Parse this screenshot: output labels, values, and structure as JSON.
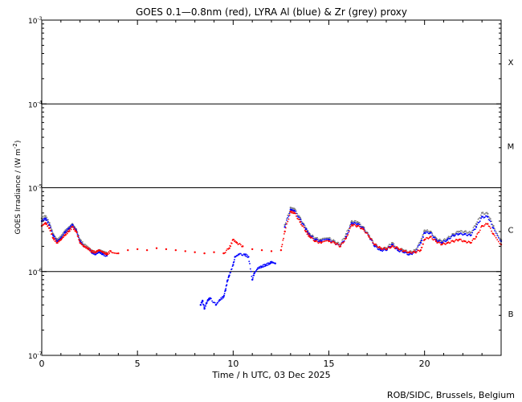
{
  "chart_data": {
    "type": "scatter",
    "title": "GOES 0.1—0.8nm (red), LYRA Al (blue) & Zr (grey) proxy",
    "xlabel": "Time / h UTC, 03 Dec 2025",
    "ylabel": "GOES Irradiance / (W m",
    "ylabel_sup": "-2",
    "ylabel_close": ")",
    "credit": "ROB/SIDC, Brussels, Belgium",
    "xlim": [
      0,
      24
    ],
    "ylim": [
      1e-07,
      0.001
    ],
    "yscale": "log",
    "x_ticks": [
      {
        "v": 0,
        "label": "0"
      },
      {
        "v": 5,
        "label": "5"
      },
      {
        "v": 10,
        "label": "10"
      },
      {
        "v": 15,
        "label": "15"
      },
      {
        "v": 20,
        "label": "20"
      }
    ],
    "y_ticks": [
      {
        "exp": -7,
        "base": "10",
        "sup": "-7"
      },
      {
        "exp": -6,
        "base": "10",
        "sup": "-6"
      },
      {
        "exp": -5,
        "base": "10",
        "sup": "-5"
      },
      {
        "exp": -4,
        "base": "10",
        "sup": "-4"
      },
      {
        "exp": -3,
        "base": "10",
        "sup": "-3"
      }
    ],
    "flare_classes": [
      {
        "label": "B",
        "center_exp": -6.5
      },
      {
        "label": "C",
        "center_exp": -5.5
      },
      {
        "label": "M",
        "center_exp": -4.5
      },
      {
        "label": "X",
        "center_exp": -3.5
      }
    ],
    "class_lines_exp": [
      -6,
      -5,
      -4
    ],
    "series": [
      {
        "name": "GOES 0.1—0.8nm",
        "color": "#ff0000",
        "x": [
          0.0,
          0.2,
          0.4,
          0.6,
          0.8,
          1.0,
          1.2,
          1.4,
          1.6,
          1.8,
          2.0,
          2.2,
          2.4,
          2.6,
          2.8,
          3.0,
          3.2,
          3.4,
          3.6,
          4.0,
          4.5,
          5.0,
          5.5,
          6.0,
          6.5,
          7.0,
          7.5,
          8.0,
          8.5,
          9.0,
          9.5,
          9.8,
          10.0,
          10.2,
          10.5,
          11.0,
          11.5,
          12.0,
          12.5,
          12.7,
          13.0,
          13.2,
          13.5,
          13.8,
          14.0,
          14.3,
          14.6,
          15.0,
          15.3,
          15.6,
          15.9,
          16.2,
          16.5,
          16.8,
          17.1,
          17.4,
          17.7,
          18.0,
          18.3,
          18.6,
          18.9,
          19.2,
          19.5,
          19.8,
          20.0,
          20.3,
          20.6,
          20.9,
          21.2,
          21.5,
          21.8,
          22.1,
          22.4,
          22.7,
          23.0,
          23.3,
          23.6,
          24.0
        ],
        "y": [
          3.5e-06,
          3.8e-06,
          3.3e-06,
          2.5e-06,
          2.2e-06,
          2.4e-06,
          2.7e-06,
          3e-06,
          3.4e-06,
          3e-06,
          2.2e-06,
          2e-06,
          1.9e-06,
          1.75e-06,
          1.7e-06,
          1.8e-06,
          1.7e-06,
          1.6e-06,
          1.75e-06,
          1.65e-06,
          1.8e-06,
          1.85e-06,
          1.8e-06,
          1.9e-06,
          1.85e-06,
          1.8e-06,
          1.75e-06,
          1.7e-06,
          1.65e-06,
          1.7e-06,
          1.65e-06,
          1.9e-06,
          2.4e-06,
          2.2e-06,
          2e-06,
          1.85e-06,
          1.8e-06,
          1.75e-06,
          1.8e-06,
          3e-06,
          5.2e-06,
          5e-06,
          3.9e-06,
          3e-06,
          2.6e-06,
          2.3e-06,
          2.2e-06,
          2.3e-06,
          2.2e-06,
          2e-06,
          2.5e-06,
          3.6e-06,
          3.5e-06,
          3.2e-06,
          2.6e-06,
          2.1e-06,
          1.9e-06,
          1.85e-06,
          2e-06,
          1.9e-06,
          1.75e-06,
          1.7e-06,
          1.7e-06,
          1.8e-06,
          2.4e-06,
          2.6e-06,
          2.3e-06,
          2.1e-06,
          2.2e-06,
          2.3e-06,
          2.4e-06,
          2.3e-06,
          2.2e-06,
          2.6e-06,
          3.5e-06,
          3.7e-06,
          2.8e-06,
          2.1e-06
        ]
      },
      {
        "name": "LYRA Al",
        "color": "#0000ff",
        "x": [
          0.0,
          0.2,
          0.4,
          0.6,
          0.8,
          1.0,
          1.2,
          1.4,
          1.6,
          1.8,
          2.0,
          2.2,
          2.6,
          2.8,
          3.0,
          3.2,
          3.4,
          8.3,
          8.4,
          8.5,
          8.6,
          8.7,
          8.8,
          9.1,
          9.3,
          9.5,
          9.6,
          9.7,
          9.8,
          10.0,
          10.1,
          10.3,
          10.6,
          10.8,
          11.0,
          11.1,
          11.3,
          11.5,
          11.7,
          11.9,
          12.0,
          12.2,
          12.7,
          13.0,
          13.2,
          13.5,
          13.8,
          14.0,
          14.3,
          14.6,
          15.0,
          15.3,
          15.6,
          15.9,
          16.2,
          16.5,
          16.8,
          17.1,
          17.4,
          17.7,
          18.0,
          18.3,
          18.6,
          18.9,
          19.2,
          19.5,
          19.8,
          20.0,
          20.3,
          20.6,
          20.9,
          21.2,
          21.5,
          21.8,
          22.1,
          22.4,
          22.7,
          23.0,
          23.3,
          23.6,
          24.0
        ],
        "y": [
          4e-06,
          4.3e-06,
          3.6e-06,
          2.7e-06,
          2.3e-06,
          2.5e-06,
          2.9e-06,
          3.2e-06,
          3.6e-06,
          3.1e-06,
          2.3e-06,
          2e-06,
          1.7e-06,
          1.6e-06,
          1.7e-06,
          1.6e-06,
          1.55e-06,
          4e-07,
          4.5e-07,
          3.6e-07,
          4.2e-07,
          4.6e-07,
          4.8e-07,
          4e-07,
          4.6e-07,
          5e-07,
          6e-07,
          7.8e-07,
          9e-07,
          1.2e-06,
          1.5e-06,
          1.6e-06,
          1.6e-06,
          1.5e-06,
          8e-07,
          9.5e-07,
          1.1e-06,
          1.15e-06,
          1.2e-06,
          1.25e-06,
          1.3e-06,
          1.25e-06,
          3.4e-06,
          5.5e-06,
          5.3e-06,
          4.2e-06,
          3.2e-06,
          2.7e-06,
          2.4e-06,
          2.3e-06,
          2.4e-06,
          2.2e-06,
          2e-06,
          2.6e-06,
          3.8e-06,
          3.7e-06,
          3.3e-06,
          2.6e-06,
          2e-06,
          1.8e-06,
          1.8e-06,
          2.1e-06,
          1.8e-06,
          1.7e-06,
          1.6e-06,
          1.7e-06,
          2.2e-06,
          2.9e-06,
          2.9e-06,
          2.4e-06,
          2.2e-06,
          2.4e-06,
          2.7e-06,
          2.8e-06,
          2.8e-06,
          2.7e-06,
          3.4e-06,
          4.5e-06,
          4.5e-06,
          3.3e-06,
          2.3e-06
        ]
      },
      {
        "name": "LYRA Zr",
        "color": "#808080",
        "x": [
          0.0,
          0.2,
          0.4,
          0.6,
          0.8,
          1.0,
          1.2,
          1.4,
          1.6,
          1.8,
          2.0,
          2.2,
          2.6,
          2.8,
          3.0,
          3.2,
          3.4,
          12.7,
          13.0,
          13.2,
          13.5,
          13.8,
          14.0,
          14.3,
          14.6,
          15.0,
          15.3,
          15.6,
          15.9,
          16.2,
          16.5,
          16.8,
          17.1,
          17.4,
          17.7,
          18.0,
          18.3,
          18.6,
          18.9,
          19.2,
          19.5,
          19.8,
          20.0,
          20.3,
          20.6,
          20.9,
          21.2,
          21.5,
          21.8,
          22.1,
          22.4,
          22.7,
          23.0,
          23.3,
          23.6,
          24.0
        ],
        "y": [
          4.3e-06,
          4.6e-06,
          3.8e-06,
          2.8e-06,
          2.4e-06,
          2.6e-06,
          3e-06,
          3.3e-06,
          3.7e-06,
          3.2e-06,
          2.4e-06,
          2.1e-06,
          1.8e-06,
          1.7e-06,
          1.8e-06,
          1.7e-06,
          1.65e-06,
          3.6e-06,
          5.8e-06,
          5.6e-06,
          4.4e-06,
          3.3e-06,
          2.8e-06,
          2.5e-06,
          2.4e-06,
          2.5e-06,
          2.3e-06,
          2.1e-06,
          2.8e-06,
          4e-06,
          3.9e-06,
          3.4e-06,
          2.7e-06,
          2.1e-06,
          1.9e-06,
          1.9e-06,
          2.2e-06,
          1.9e-06,
          1.8e-06,
          1.7e-06,
          1.8e-06,
          2.3e-06,
          3.1e-06,
          3e-06,
          2.5e-06,
          2.3e-06,
          2.5e-06,
          2.8e-06,
          3e-06,
          3e-06,
          2.9e-06,
          3.7e-06,
          5e-06,
          4.9e-06,
          3.5e-06,
          2.4e-06
        ]
      }
    ]
  }
}
